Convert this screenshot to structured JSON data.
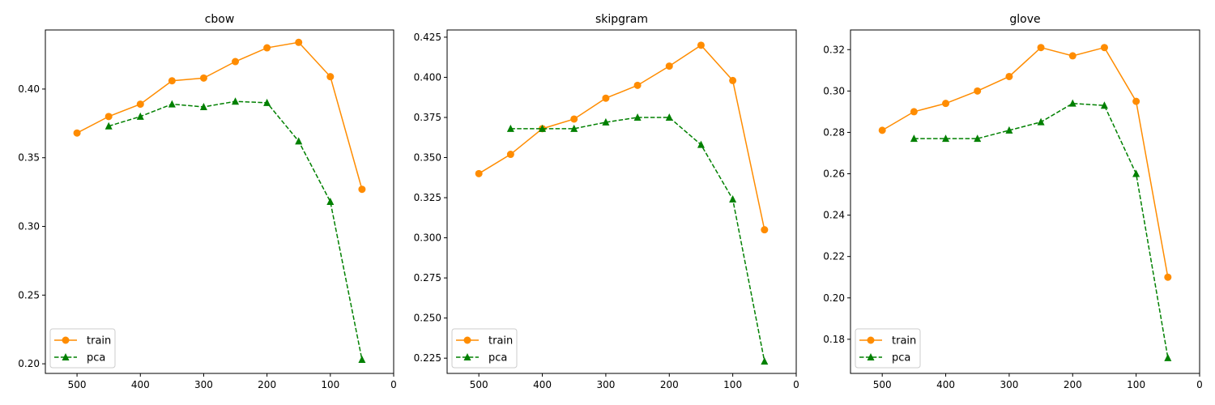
{
  "colors": {
    "train": "#ff8c00",
    "pca": "#008000"
  },
  "chart_data": [
    {
      "type": "line",
      "title": "cbow",
      "xlabel": "",
      "ylabel": "",
      "x_inverted": true,
      "xlim": [
        550,
        0
      ],
      "ylim": [
        0.193,
        0.443
      ],
      "xticks": [
        500,
        400,
        300,
        200,
        100,
        0
      ],
      "yticks": [
        0.2,
        0.25,
        0.3,
        0.35,
        0.4
      ],
      "ytick_labels": [
        "0.20",
        "0.25",
        "0.30",
        "0.35",
        "0.40"
      ],
      "legend_position": "lower-left",
      "series": [
        {
          "name": "train",
          "style": "solid",
          "marker": "circle",
          "x": [
            500,
            450,
            400,
            350,
            300,
            250,
            200,
            150,
            100,
            50
          ],
          "y": [
            0.368,
            0.38,
            0.389,
            0.406,
            0.408,
            0.42,
            0.43,
            0.434,
            0.409,
            0.327
          ]
        },
        {
          "name": "pca",
          "style": "dashed",
          "marker": "triangle",
          "x": [
            450,
            400,
            350,
            300,
            250,
            200,
            150,
            100,
            50
          ],
          "y": [
            0.373,
            0.38,
            0.389,
            0.387,
            0.391,
            0.39,
            0.362,
            0.318,
            0.203
          ]
        }
      ]
    },
    {
      "type": "line",
      "title": "skipgram",
      "xlabel": "",
      "ylabel": "",
      "x_inverted": true,
      "xlim": [
        550,
        0
      ],
      "ylim": [
        0.2155,
        0.4295
      ],
      "xticks": [
        500,
        400,
        300,
        200,
        100,
        0
      ],
      "yticks": [
        0.225,
        0.25,
        0.275,
        0.3,
        0.325,
        0.35,
        0.375,
        0.4,
        0.425
      ],
      "ytick_labels": [
        "0.225",
        "0.250",
        "0.275",
        "0.300",
        "0.325",
        "0.350",
        "0.375",
        "0.400",
        "0.425"
      ],
      "legend_position": "lower-left",
      "series": [
        {
          "name": "train",
          "style": "solid",
          "marker": "circle",
          "x": [
            500,
            450,
            400,
            350,
            300,
            250,
            200,
            150,
            100,
            50
          ],
          "y": [
            0.34,
            0.352,
            0.368,
            0.374,
            0.387,
            0.395,
            0.407,
            0.42,
            0.398,
            0.305
          ]
        },
        {
          "name": "pca",
          "style": "dashed",
          "marker": "triangle",
          "x": [
            450,
            400,
            350,
            300,
            250,
            200,
            150,
            100,
            50
          ],
          "y": [
            0.368,
            0.368,
            0.368,
            0.372,
            0.375,
            0.375,
            0.358,
            0.324,
            0.223
          ]
        }
      ]
    },
    {
      "type": "line",
      "title": "glove",
      "xlabel": "",
      "ylabel": "",
      "x_inverted": true,
      "xlim": [
        550,
        0
      ],
      "ylim": [
        0.1635,
        0.3295
      ],
      "xticks": [
        500,
        400,
        300,
        200,
        100,
        0
      ],
      "yticks": [
        0.18,
        0.2,
        0.22,
        0.24,
        0.26,
        0.28,
        0.3,
        0.32
      ],
      "ytick_labels": [
        "0.18",
        "0.20",
        "0.22",
        "0.24",
        "0.26",
        "0.28",
        "0.30",
        "0.32"
      ],
      "legend_position": "lower-left",
      "series": [
        {
          "name": "train",
          "style": "solid",
          "marker": "circle",
          "x": [
            500,
            450,
            400,
            350,
            300,
            250,
            200,
            150,
            100,
            50
          ],
          "y": [
            0.281,
            0.29,
            0.294,
            0.3,
            0.307,
            0.321,
            0.317,
            0.321,
            0.295,
            0.21
          ]
        },
        {
          "name": "pca",
          "style": "dashed",
          "marker": "triangle",
          "x": [
            450,
            400,
            350,
            300,
            250,
            200,
            150,
            100,
            50
          ],
          "y": [
            0.277,
            0.277,
            0.277,
            0.281,
            0.285,
            0.294,
            0.293,
            0.26,
            0.171
          ]
        }
      ]
    }
  ]
}
